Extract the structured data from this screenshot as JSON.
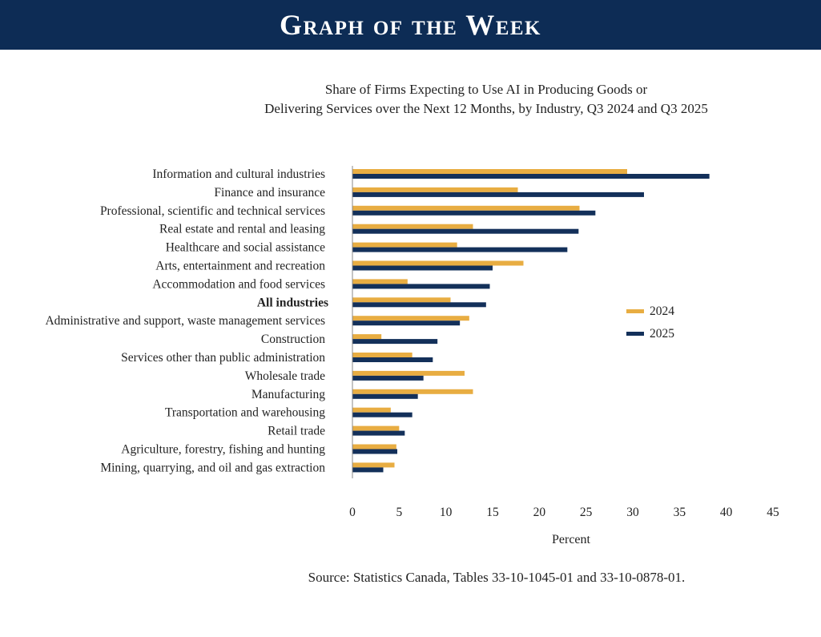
{
  "banner": {
    "title": "Graph of the Week"
  },
  "chart_data": {
    "type": "bar",
    "orientation": "horizontal",
    "title": [
      "Share of Firms Expecting to Use AI in Producing Goods or",
      "Delivering Services over the Next 12 Months, by Industry, Q3 2024 and Q3 2025"
    ],
    "xlabel": "Percent",
    "ylabel": "",
    "xlim": [
      0,
      45
    ],
    "xticks": [
      0,
      5,
      10,
      15,
      20,
      25,
      30,
      35,
      40,
      45
    ],
    "grid": false,
    "legend_position": "right",
    "categories": [
      "Information and cultural industries",
      "Finance and insurance",
      "Professional, scientific and technical services",
      "Real estate and rental and leasing",
      "Healthcare and social assistance",
      "Arts, entertainment and recreation",
      "Accommodation and food services",
      "All industries",
      "Administrative and support, waste management services",
      "Construction",
      "Services other than public administration",
      "Wholesale trade",
      "Manufacturing",
      "Transportation and warehousing",
      "Retail trade",
      "Agriculture, forestry, fishing and hunting",
      "Mining, quarrying, and oil and gas extraction"
    ],
    "highlight_category": "All industries",
    "series": [
      {
        "name": "2024",
        "color": "#e8ad42",
        "values": [
          29.4,
          17.7,
          24.3,
          12.9,
          11.2,
          18.3,
          5.9,
          10.5,
          12.5,
          3.1,
          6.4,
          12.0,
          12.9,
          4.1,
          5.0,
          4.7,
          4.5
        ]
      },
      {
        "name": "2025",
        "color": "#13305a",
        "values": [
          38.2,
          31.2,
          26.0,
          24.2,
          23.0,
          15.0,
          14.7,
          14.3,
          11.5,
          9.1,
          8.6,
          7.6,
          7.0,
          6.4,
          5.6,
          4.8,
          3.3
        ]
      }
    ],
    "source": "Source: Statistics Canada, Tables 33-10-1045-01 and 33-10-0878-01."
  }
}
